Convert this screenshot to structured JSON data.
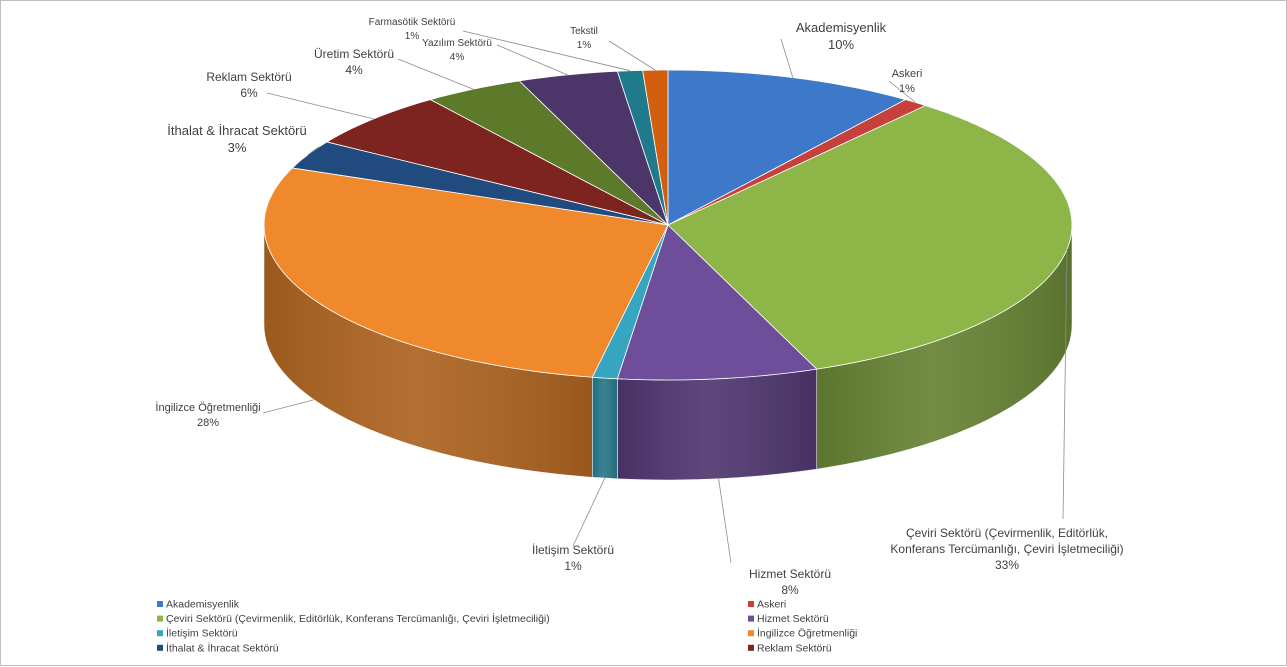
{
  "chart_data": {
    "type": "pie",
    "style": "3d-exploded-view",
    "categories": [
      "Akademisyenlik",
      "Askeri",
      "Çeviri Sektörü (Çevirmenlik, Editörlük, Konferans Tercümanlığı, Çeviri İşletmeciliği)",
      "Hizmet Sektörü",
      "İletişim Sektörü",
      "İngilizce Öğretmenliği",
      "İthalat & İhracat Sektörü",
      "Reklam Sektörü",
      "Üretim Sektörü",
      "Yazılım Sektörü",
      "Farmasötik Sektörü",
      "Tekstil"
    ],
    "values": [
      10,
      1,
      33,
      8,
      1,
      28,
      3,
      6,
      4,
      4,
      1,
      1
    ],
    "value_labels": [
      "10%",
      "1%",
      "33%",
      "8%",
      "1%",
      "28%",
      "3%",
      "6%",
      "4%",
      "4%",
      "1%",
      "1%"
    ],
    "label_lines": [
      [
        "Akademisyenlik"
      ],
      [
        "Askeri"
      ],
      [
        "Çeviri Sektörü (Çevirmenlik,  Editörlük,",
        "Konferans Tercümanlığı, Çeviri İşletmeciliği)"
      ],
      [
        "Hizmet Sektörü"
      ],
      [
        "İletişim Sektörü"
      ],
      [
        "İngilizce Öğretmenliği"
      ],
      [
        "İthalat & İhracat Sektörü"
      ],
      [
        "Reklam Sektörü"
      ],
      [
        "Üretim Sektörü"
      ],
      [
        "Yazılım Sektörü"
      ],
      [
        "Farmasötik Sektörü"
      ],
      [
        "Tekstil"
      ]
    ],
    "colors": [
      "#3d79c8",
      "#c8403c",
      "#8db548",
      "#6e4d9a",
      "#36a6c0",
      "#f0892c",
      "#214a7e",
      "#7d2420",
      "#5c7a2a",
      "#4c3568",
      "#1f7a8c",
      "#d25f10"
    ],
    "legend": {
      "position": "bottom",
      "entries": [
        "Akademisyenlik",
        "Askeri",
        "Çeviri Sektörü (Çevirmenlik, Editörlük, Konferans Tercümanlığı, Çeviri İşletmeciliği)",
        "Hizmet Sektörü",
        "İletişim Sektörü",
        "İngilizce Öğretmenliği",
        "İthalat & İhracat Sektörü",
        "Reklam Sektörü"
      ]
    }
  }
}
